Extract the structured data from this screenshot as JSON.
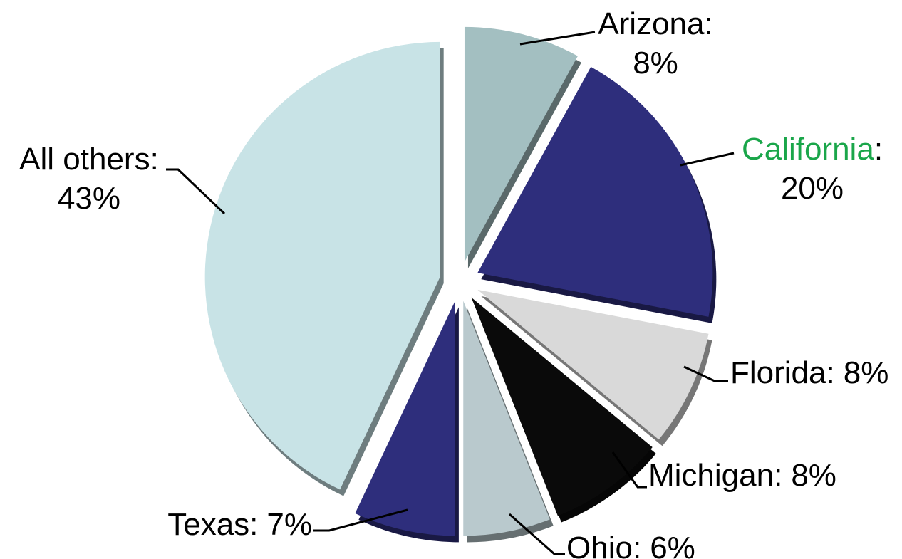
{
  "chart_data": {
    "type": "pie",
    "categories": [
      "Arizona",
      "California",
      "Florida",
      "Michigan",
      "Ohio",
      "Texas",
      "All others"
    ],
    "values": [
      8,
      20,
      8,
      8,
      6,
      7,
      43
    ],
    "value_labels": [
      "8%",
      "20%",
      "8%",
      "8%",
      "6%",
      "7%",
      "43%"
    ],
    "label_separator": ":",
    "colors": [
      "#a3bfc1",
      "#2e2e7c",
      "#d9d9d9",
      "#0a0a0a",
      "#b9c9cd",
      "#2e2e7c",
      "#c8e3e6"
    ],
    "label_colors": [
      null,
      "#1aa64a",
      null,
      null,
      null,
      null,
      null
    ],
    "exploded": true
  }
}
